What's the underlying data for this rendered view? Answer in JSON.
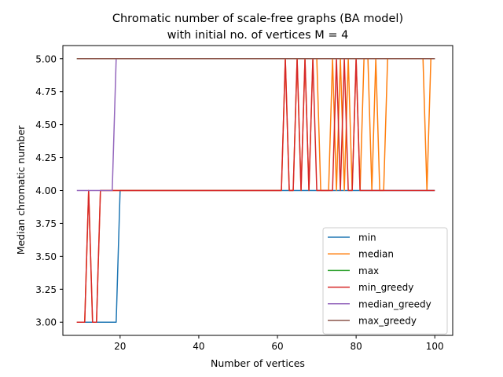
{
  "chart_data": {
    "type": "line",
    "title_line1": "Chromatic number of scale-free graphs (BA model)",
    "title_line2": "with initial no. of vertices M = 4",
    "xlabel": "Number of vertices",
    "ylabel": "Median chromatic number",
    "xlim": [
      5.45,
      104.55
    ],
    "ylim": [
      2.9,
      5.1
    ],
    "xticks": [
      20,
      40,
      60,
      80,
      100
    ],
    "yticks": [
      3.0,
      3.25,
      3.5,
      3.75,
      4.0,
      4.25,
      4.5,
      4.75,
      5.0
    ],
    "ytick_labels": [
      "3.00",
      "3.25",
      "3.50",
      "3.75",
      "4.00",
      "4.25",
      "4.50",
      "4.75",
      "5.00"
    ],
    "grid": false,
    "legend_position": "lower-right",
    "x": [
      9,
      10,
      11,
      12,
      13,
      14,
      15,
      16,
      17,
      18,
      19,
      20,
      21,
      22,
      23,
      24,
      25,
      26,
      27,
      28,
      29,
      30,
      31,
      32,
      33,
      34,
      35,
      36,
      37,
      38,
      39,
      40,
      41,
      42,
      43,
      44,
      45,
      46,
      47,
      48,
      49,
      50,
      51,
      52,
      53,
      54,
      55,
      56,
      57,
      58,
      59,
      60,
      61,
      62,
      63,
      64,
      65,
      66,
      67,
      68,
      69,
      70,
      71,
      72,
      73,
      74,
      75,
      76,
      77,
      78,
      79,
      80,
      81,
      82,
      83,
      84,
      85,
      86,
      87,
      88,
      89,
      90,
      91,
      92,
      93,
      94,
      95,
      96,
      97,
      98,
      99,
      100
    ],
    "series": [
      {
        "name": "min",
        "color": "#1f77b4",
        "values": [
          3,
          3,
          3,
          3,
          3,
          3,
          3,
          3,
          3,
          3,
          3,
          4,
          4,
          4,
          4,
          4,
          4,
          4,
          4,
          4,
          4,
          4,
          4,
          4,
          4,
          4,
          4,
          4,
          4,
          4,
          4,
          4,
          4,
          4,
          4,
          4,
          4,
          4,
          4,
          4,
          4,
          4,
          4,
          4,
          4,
          4,
          4,
          4,
          4,
          4,
          4,
          4,
          4,
          4,
          4,
          4,
          4,
          4,
          4,
          4,
          4,
          4,
          4,
          4,
          4,
          4,
          4,
          4,
          4,
          4,
          4,
          4,
          4,
          4,
          4,
          4,
          4,
          4,
          4,
          4,
          4,
          4,
          4,
          4,
          4,
          4,
          4,
          4,
          4,
          4,
          4,
          4
        ]
      },
      {
        "name": "median",
        "color": "#ff7f0e",
        "values": [
          3,
          3,
          3,
          4,
          3,
          3,
          4,
          4,
          4,
          4,
          4,
          4,
          4,
          4,
          4,
          4,
          4,
          4,
          4,
          4,
          4,
          4,
          4,
          4,
          4,
          4,
          4,
          4,
          4,
          4,
          4,
          4,
          4,
          4,
          4,
          4,
          4,
          4,
          4,
          4,
          4,
          4,
          4,
          4,
          4,
          4,
          4,
          4,
          4,
          4,
          4,
          4,
          4,
          5,
          4,
          4,
          5,
          4,
          5,
          4,
          5,
          5,
          4,
          4,
          4,
          5,
          4,
          5,
          4,
          5,
          4,
          5,
          4,
          5,
          5,
          4,
          5,
          4,
          4,
          5,
          5,
          5,
          5,
          5,
          5,
          5,
          5,
          5,
          5,
          4,
          5,
          5
        ]
      },
      {
        "name": "max",
        "color": "#2ca02c",
        "values": [
          5,
          5,
          5,
          5,
          5,
          5,
          5,
          5,
          5,
          5,
          5,
          5,
          5,
          5,
          5,
          5,
          5,
          5,
          5,
          5,
          5,
          5,
          5,
          5,
          5,
          5,
          5,
          5,
          5,
          5,
          5,
          5,
          5,
          5,
          5,
          5,
          5,
          5,
          5,
          5,
          5,
          5,
          5,
          5,
          5,
          5,
          5,
          5,
          5,
          5,
          5,
          5,
          5,
          5,
          5,
          5,
          5,
          5,
          5,
          5,
          5,
          5,
          5,
          5,
          5,
          5,
          5,
          5,
          5,
          5,
          5,
          5,
          5,
          5,
          5,
          5,
          5,
          5,
          5,
          5,
          5,
          5,
          5,
          5,
          5,
          5,
          5,
          5,
          5,
          5,
          5,
          5
        ]
      },
      {
        "name": "min_greedy",
        "color": "#d62728",
        "values": [
          3,
          3,
          3,
          4,
          3,
          3,
          4,
          4,
          4,
          4,
          4,
          4,
          4,
          4,
          4,
          4,
          4,
          4,
          4,
          4,
          4,
          4,
          4,
          4,
          4,
          4,
          4,
          4,
          4,
          4,
          4,
          4,
          4,
          4,
          4,
          4,
          4,
          4,
          4,
          4,
          4,
          4,
          4,
          4,
          4,
          4,
          4,
          4,
          4,
          4,
          4,
          4,
          4,
          5,
          4,
          4,
          5,
          4,
          5,
          4,
          5,
          4,
          4,
          4,
          4,
          4,
          5,
          4,
          5,
          4,
          4,
          5,
          4,
          4,
          4,
          4,
          4,
          4,
          4,
          4,
          4,
          4,
          4,
          4,
          4,
          4,
          4,
          4,
          4,
          4,
          4,
          4
        ]
      },
      {
        "name": "median_greedy",
        "color": "#9467bd",
        "values": [
          4,
          4,
          4,
          4,
          4,
          4,
          4,
          4,
          4,
          4,
          5,
          5,
          5,
          5,
          5,
          5,
          5,
          5,
          5,
          5,
          5,
          5,
          5,
          5,
          5,
          5,
          5,
          5,
          5,
          5,
          5,
          5,
          5,
          5,
          5,
          5,
          5,
          5,
          5,
          5,
          5,
          5,
          5,
          5,
          5,
          5,
          5,
          5,
          5,
          5,
          5,
          5,
          5,
          5,
          5,
          5,
          5,
          5,
          5,
          5,
          5,
          5,
          5,
          5,
          5,
          5,
          5,
          5,
          5,
          5,
          5,
          5,
          5,
          5,
          5,
          5,
          5,
          5,
          5,
          5,
          5,
          5,
          5,
          5,
          5,
          5,
          5,
          5,
          5,
          5,
          5,
          5
        ]
      },
      {
        "name": "max_greedy",
        "color": "#8c564b",
        "values": [
          5,
          5,
          5,
          5,
          5,
          5,
          5,
          5,
          5,
          5,
          5,
          5,
          5,
          5,
          5,
          5,
          5,
          5,
          5,
          5,
          5,
          5,
          5,
          5,
          5,
          5,
          5,
          5,
          5,
          5,
          5,
          5,
          5,
          5,
          5,
          5,
          5,
          5,
          5,
          5,
          5,
          5,
          5,
          5,
          5,
          5,
          5,
          5,
          5,
          5,
          5,
          5,
          5,
          5,
          5,
          5,
          5,
          5,
          5,
          5,
          5,
          5,
          5,
          5,
          5,
          5,
          5,
          5,
          5,
          5,
          5,
          5,
          5,
          5,
          5,
          5,
          5,
          5,
          5,
          5,
          5,
          5,
          5,
          5,
          5,
          5,
          5,
          5,
          5,
          5,
          5,
          5
        ]
      }
    ]
  }
}
